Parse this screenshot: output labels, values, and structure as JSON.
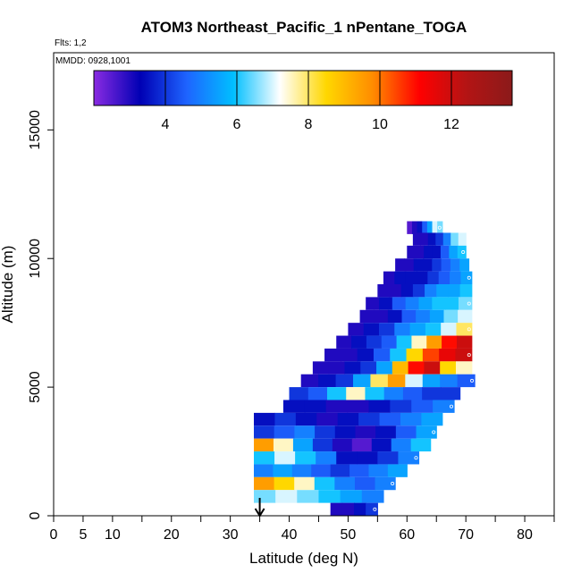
{
  "chart_data": {
    "type": "heatmap",
    "title": "ATOM3 Northeast_Pacific_1 nPentane_TOGA",
    "subtitle_flights": "Flts: 1,2",
    "subtitle_dates": "MMDD: 0928,1001",
    "xlabel": "Latitude (deg N)",
    "ylabel": "Altitude (m)",
    "xlim": [
      0,
      85
    ],
    "ylim": [
      0,
      18000
    ],
    "xticks": [
      0,
      5,
      10,
      20,
      30,
      40,
      50,
      60,
      70,
      80
    ],
    "xtick_labels": [
      "0",
      "5",
      "10",
      "20",
      "30",
      "40",
      "50",
      "60",
      "70",
      "80"
    ],
    "yticks": [
      0,
      5000,
      10000,
      15000
    ],
    "ytick_labels": [
      "0",
      "5000",
      "10000",
      "15000"
    ],
    "colorbar": {
      "range": [
        2,
        13.7
      ],
      "ticks": [
        4,
        6,
        8,
        10,
        12
      ],
      "tick_labels": [
        "4",
        "6",
        "8",
        "10",
        "12"
      ],
      "colors": [
        "#8a2be2",
        "#0000b4",
        "#1e64ff",
        "#00bfff",
        "#ffffff",
        "#ffd700",
        "#ff8c00",
        "#ff0000",
        "#b41414",
        "#8b1a1a"
      ]
    },
    "arrow_latitude": 35,
    "bands": [
      {
        "alt": 11200,
        "lat0": 60.0,
        "lat1": 66.0,
        "values": [
          2.5,
          3.0,
          3.5,
          4.5,
          5.5,
          7.0,
          6.5
        ]
      },
      {
        "alt": 10750,
        "lat0": 61.0,
        "lat1": 70.0,
        "values": [
          3.0,
          3.0,
          3.5,
          4.0,
          5.0,
          6.5,
          7.0
        ]
      },
      {
        "alt": 10250,
        "lat0": 60.0,
        "lat1": 70.0,
        "values": [
          3.0,
          3.0,
          3.5,
          3.5,
          4.5,
          5.5,
          6.0
        ]
      },
      {
        "alt": 9750,
        "lat0": 58.0,
        "lat1": 70.5,
        "values": [
          3.0,
          3.0,
          3.5,
          3.5,
          4.0,
          4.5,
          5.0,
          5.5
        ]
      },
      {
        "alt": 9250,
        "lat0": 56.0,
        "lat1": 71.0,
        "values": [
          3.0,
          3.5,
          3.5,
          3.5,
          4.0,
          4.5,
          5.0,
          5.5
        ]
      },
      {
        "alt": 8750,
        "lat0": 55.0,
        "lat1": 71.0,
        "values": [
          3.0,
          3.0,
          3.5,
          4.0,
          5.0,
          5.5,
          5.5,
          6.0
        ]
      },
      {
        "alt": 8250,
        "lat0": 53.0,
        "lat1": 71.0,
        "values": [
          3.0,
          3.5,
          4.5,
          5.0,
          5.5,
          6.0,
          6.0,
          6.5
        ]
      },
      {
        "alt": 7750,
        "lat0": 52.0,
        "lat1": 71.0,
        "values": [
          3.0,
          3.0,
          3.5,
          4.5,
          5.0,
          5.5,
          6.5,
          7.0
        ]
      },
      {
        "alt": 7250,
        "lat0": 50.0,
        "lat1": 71.0,
        "values": [
          3.0,
          3.5,
          4.0,
          5.0,
          5.5,
          6.0,
          7.0,
          8.0
        ]
      },
      {
        "alt": 6750,
        "lat0": 48.0,
        "lat1": 71.0,
        "values": [
          3.0,
          3.5,
          4.0,
          4.5,
          6.0,
          7.5,
          9.5,
          11.0,
          12.0
        ]
      },
      {
        "alt": 6250,
        "lat0": 46.0,
        "lat1": 71.0,
        "values": [
          3.0,
          3.0,
          3.5,
          4.5,
          6.0,
          8.5,
          10.5,
          11.5,
          12.0
        ]
      },
      {
        "alt": 5750,
        "lat0": 44.0,
        "lat1": 71.0,
        "values": [
          3.0,
          3.0,
          3.5,
          4.0,
          5.5,
          9.0,
          11.0,
          12.0,
          8.5,
          7.5
        ]
      },
      {
        "alt": 5250,
        "lat0": 42.0,
        "lat1": 71.5,
        "values": [
          3.0,
          3.5,
          4.0,
          5.5,
          8.0,
          9.5,
          7.0,
          5.5,
          5.0,
          4.5
        ]
      },
      {
        "alt": 4750,
        "lat0": 40.0,
        "lat1": 69.0,
        "values": [
          4.0,
          4.5,
          6.0,
          7.5,
          6.0,
          5.0,
          4.5,
          4.0,
          4.0
        ]
      },
      {
        "alt": 4250,
        "lat0": 39.0,
        "lat1": 68.0,
        "values": [
          3.5,
          3.5,
          3.0,
          3.0,
          3.5,
          4.0,
          4.5,
          5.0
        ]
      },
      {
        "alt": 3750,
        "lat0": 34.0,
        "lat1": 66.0,
        "values": [
          3.5,
          4.0,
          3.5,
          3.0,
          3.5,
          4.0,
          4.5,
          5.0,
          5.5
        ]
      },
      {
        "alt": 3250,
        "lat0": 34.0,
        "lat1": 65.0,
        "values": [
          4.0,
          4.5,
          5.0,
          4.0,
          3.5,
          3.0,
          3.5,
          4.5,
          5.5
        ]
      },
      {
        "alt": 2750,
        "lat0": 34.0,
        "lat1": 64.0,
        "values": [
          9.5,
          7.5,
          5.5,
          4.0,
          3.0,
          2.5,
          3.5,
          5.0,
          6.0
        ]
      },
      {
        "alt": 2250,
        "lat0": 34.0,
        "lat1": 62.0,
        "values": [
          6.0,
          7.0,
          6.0,
          5.0,
          3.5,
          3.5,
          4.0,
          5.0
        ]
      },
      {
        "alt": 1750,
        "lat0": 34.0,
        "lat1": 60.0,
        "values": [
          5.0,
          5.5,
          5.0,
          4.5,
          4.0,
          4.5,
          5.0,
          5.5
        ]
      },
      {
        "alt": 1250,
        "lat0": 34.0,
        "lat1": 58.0,
        "values": [
          9.5,
          8.5,
          7.5,
          6.0,
          5.0,
          4.5,
          5.0
        ]
      },
      {
        "alt": 750,
        "lat0": 34.0,
        "lat1": 56.0,
        "values": [
          6.5,
          7.0,
          6.5,
          6.0,
          5.5,
          5.0
        ]
      },
      {
        "alt": 250,
        "lat0": 47.0,
        "lat1": 55.0,
        "values": [
          3.0,
          3.0,
          3.5,
          4.0
        ]
      }
    ]
  }
}
